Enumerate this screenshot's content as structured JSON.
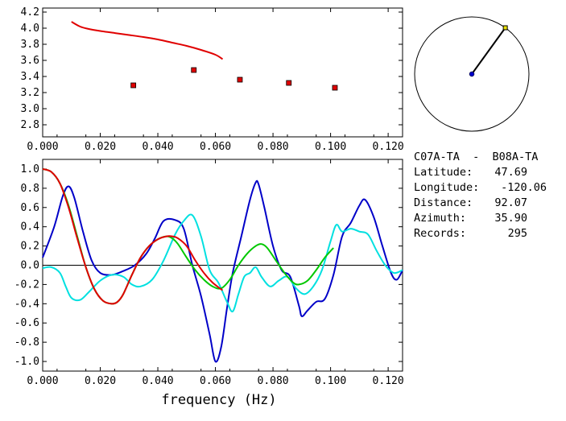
{
  "header": {
    "station_pair": "C07A-TA  -  B08A-TA"
  },
  "info": {
    "rows": [
      {
        "label": "Latitude:",
        "value": "47.69"
      },
      {
        "label": "Longitude:",
        "value": "-120.06"
      },
      {
        "label": "Distance:",
        "value": "92.07"
      },
      {
        "label": "Azimuth:",
        "value": "35.90"
      },
      {
        "label": "Records:",
        "value": "295"
      }
    ]
  },
  "chart_data": [
    {
      "type": "scatter",
      "xlabel": "",
      "ylabel": "",
      "xlim": [
        0,
        0.125
      ],
      "ylim": [
        2.65,
        4.25
      ],
      "xticks": [
        "0.000",
        "0.020",
        "0.040",
        "0.060",
        "0.080",
        "0.100",
        "0.120"
      ],
      "yticks": [
        "2.8",
        "3.0",
        "3.2",
        "3.4",
        "3.6",
        "3.8",
        "4.0",
        "4.2"
      ],
      "series": [
        {
          "kind": "line",
          "color": "#e00000",
          "x": [
            0.01,
            0.013,
            0.016,
            0.02,
            0.025,
            0.03,
            0.035,
            0.04,
            0.045,
            0.05,
            0.055,
            0.06,
            0.0625
          ],
          "y": [
            4.08,
            4.02,
            3.99,
            3.965,
            3.94,
            3.915,
            3.89,
            3.86,
            3.82,
            3.78,
            3.73,
            3.67,
            3.615
          ]
        },
        {
          "kind": "points",
          "color": "#e00000",
          "x": [
            0.0315,
            0.0525,
            0.0685,
            0.0855,
            0.1015
          ],
          "y": [
            3.29,
            3.48,
            3.36,
            3.32,
            3.26
          ]
        }
      ]
    },
    {
      "type": "line",
      "xlabel": "frequency (Hz)",
      "ylabel": "",
      "xlim": [
        0,
        0.125
      ],
      "ylim": [
        -1.1,
        1.1
      ],
      "xticks": [
        "0.000",
        "0.020",
        "0.040",
        "0.060",
        "0.080",
        "0.100",
        "0.120"
      ],
      "yticks": [
        "-1.0",
        "-0.8",
        "-0.6",
        "-0.4",
        "-0.2",
        "0.0",
        "0.2",
        "0.4",
        "0.6",
        "0.8",
        "1.0"
      ],
      "series": [
        {
          "color": "#0000c8",
          "x": [
            0,
            0.004,
            0.007,
            0.009,
            0.011,
            0.014,
            0.017,
            0.02,
            0.024,
            0.028,
            0.032,
            0.036,
            0.039,
            0.042,
            0.046,
            0.049,
            0.052,
            0.055,
            0.058,
            0.06,
            0.062,
            0.064,
            0.066,
            0.069,
            0.072,
            0.074,
            0.075,
            0.077,
            0.08,
            0.083,
            0.086,
            0.089,
            0.09,
            0.092,
            0.095,
            0.098,
            0.101,
            0.104,
            0.107,
            0.11,
            0.112,
            0.115,
            0.118,
            0.121,
            0.123,
            0.125
          ],
          "y": [
            0.08,
            0.4,
            0.72,
            0.82,
            0.7,
            0.35,
            0.05,
            -0.08,
            -0.1,
            -0.06,
            0.0,
            0.12,
            0.28,
            0.46,
            0.47,
            0.38,
            0.0,
            -0.32,
            -0.72,
            -1.0,
            -0.85,
            -0.45,
            -0.08,
            0.3,
            0.68,
            0.86,
            0.84,
            0.6,
            0.2,
            -0.05,
            -0.12,
            -0.42,
            -0.53,
            -0.47,
            -0.38,
            -0.35,
            -0.1,
            0.3,
            0.44,
            0.62,
            0.68,
            0.5,
            0.2,
            -0.08,
            -0.15,
            -0.05
          ]
        },
        {
          "color": "#00e0e0",
          "x": [
            0,
            0.003,
            0.006,
            0.008,
            0.01,
            0.013,
            0.016,
            0.02,
            0.024,
            0.028,
            0.031,
            0.034,
            0.038,
            0.042,
            0.046,
            0.049,
            0.052,
            0.055,
            0.058,
            0.061,
            0.064,
            0.066,
            0.068,
            0.07,
            0.072,
            0.074,
            0.076,
            0.079,
            0.082,
            0.085,
            0.088,
            0.091,
            0.094,
            0.097,
            0.1,
            0.102,
            0.104,
            0.107,
            0.11,
            0.113,
            0.116,
            0.119,
            0.122,
            0.125
          ],
          "y": [
            -0.03,
            -0.02,
            -0.08,
            -0.22,
            -0.34,
            -0.36,
            -0.28,
            -0.16,
            -0.1,
            -0.12,
            -0.2,
            -0.22,
            -0.15,
            0.05,
            0.32,
            0.46,
            0.52,
            0.3,
            -0.05,
            -0.18,
            -0.38,
            -0.48,
            -0.3,
            -0.12,
            -0.08,
            -0.02,
            -0.12,
            -0.22,
            -0.16,
            -0.12,
            -0.24,
            -0.3,
            -0.22,
            -0.05,
            0.25,
            0.42,
            0.35,
            0.38,
            0.35,
            0.32,
            0.15,
            0.0,
            -0.08,
            -0.05
          ]
        },
        {
          "color": "#00c800",
          "x": [
            0,
            0.003,
            0.006,
            0.009,
            0.012,
            0.015,
            0.018,
            0.021,
            0.024,
            0.026,
            0.028,
            0.031,
            0.034,
            0.037,
            0.04,
            0.043,
            0.045,
            0.047,
            0.05,
            0.053,
            0.056,
            0.059,
            0.062,
            0.065,
            0.068,
            0.071,
            0.074,
            0.076,
            0.078,
            0.081,
            0.084,
            0.087,
            0.089,
            0.092,
            0.095,
            0.098,
            0.101
          ],
          "y": [
            1.0,
            0.97,
            0.85,
            0.62,
            0.3,
            -0.02,
            -0.25,
            -0.37,
            -0.4,
            -0.38,
            -0.3,
            -0.1,
            0.08,
            0.2,
            0.27,
            0.3,
            0.28,
            0.22,
            0.08,
            -0.05,
            -0.15,
            -0.22,
            -0.24,
            -0.15,
            0.0,
            0.12,
            0.2,
            0.22,
            0.18,
            0.05,
            -0.08,
            -0.18,
            -0.2,
            -0.16,
            -0.05,
            0.08,
            0.18
          ]
        },
        {
          "color": "#e00000",
          "x": [
            0,
            0.003,
            0.006,
            0.009,
            0.012,
            0.015,
            0.018,
            0.021,
            0.024,
            0.026,
            0.028,
            0.031,
            0.034,
            0.037,
            0.04,
            0.043,
            0.045,
            0.047,
            0.05,
            0.053,
            0.056,
            0.059,
            0.062,
            0.0625
          ],
          "y": [
            1.0,
            0.97,
            0.85,
            0.6,
            0.28,
            -0.02,
            -0.25,
            -0.37,
            -0.4,
            -0.38,
            -0.3,
            -0.1,
            0.08,
            0.2,
            0.27,
            0.3,
            0.3,
            0.28,
            0.2,
            0.05,
            -0.08,
            -0.18,
            -0.25,
            -0.26
          ]
        }
      ]
    }
  ],
  "azimuth_plot": {
    "azimuth_deg": 35.9
  }
}
